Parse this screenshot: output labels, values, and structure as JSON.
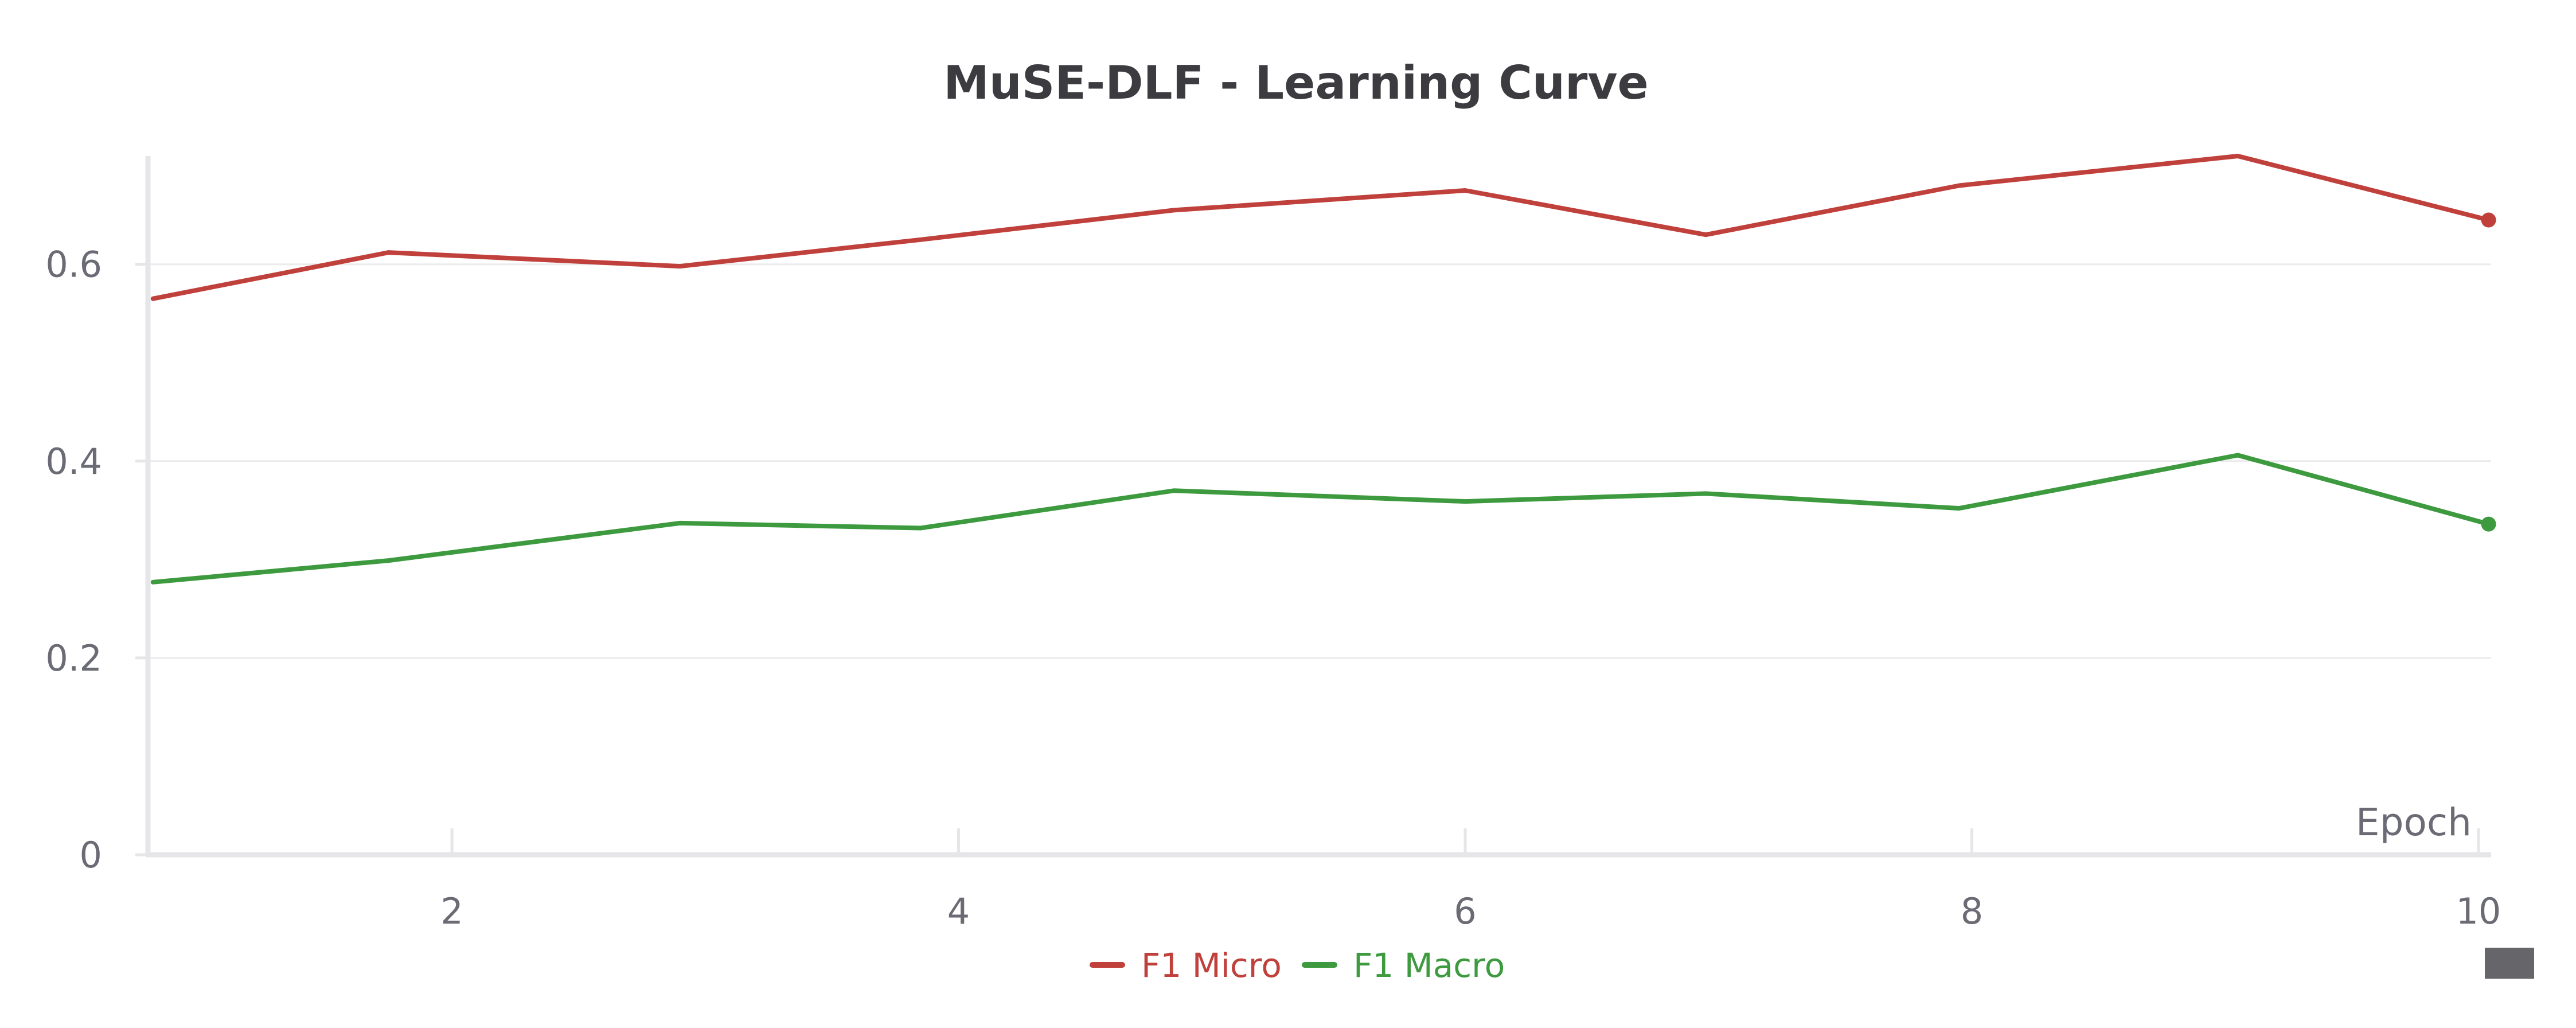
{
  "colors": {
    "background": "#ffffff",
    "grid": "#ebebeb",
    "axis": "#e6e6e9",
    "text": "#6b6b75",
    "title": "#3b3b40",
    "corner_widget": "#66666a"
  },
  "corner_widget": {
    "icon": "minimap-block-icon"
  },
  "chart_data": {
    "type": "line",
    "title": "MuSE-DLF - Learning Curve",
    "xlabel": "Epoch",
    "ylabel": "",
    "xlim": [
      0.8,
      10.05
    ],
    "ylim": [
      0,
      0.71
    ],
    "x_ticks": [
      2,
      4,
      6,
      8,
      10
    ],
    "x_tick_labels": [
      "2",
      "4",
      "6",
      "8",
      "10"
    ],
    "y_ticks": [
      0,
      0.2,
      0.4,
      0.6
    ],
    "y_tick_labels": [
      "0",
      "0.2",
      "0.4",
      "0.6"
    ],
    "grid": true,
    "legend_position": "bottom-center",
    "series": [
      {
        "name": "F1 Micro",
        "color": "#c0403c",
        "x": [
          0.82,
          1.75,
          2.9,
          3.85,
          4.85,
          6.0,
          6.95,
          7.95,
          9.05,
          10.04
        ],
        "values": [
          0.565,
          0.612,
          0.598,
          0.625,
          0.655,
          0.675,
          0.63,
          0.68,
          0.71,
          0.645
        ]
      },
      {
        "name": "F1 Macro",
        "color": "#3d9a3f",
        "x": [
          0.82,
          1.75,
          2.9,
          3.85,
          4.85,
          6.0,
          6.95,
          7.95,
          9.05,
          10.04
        ],
        "values": [
          0.277,
          0.299,
          0.337,
          0.332,
          0.37,
          0.359,
          0.367,
          0.352,
          0.406,
          0.336
        ]
      }
    ]
  }
}
